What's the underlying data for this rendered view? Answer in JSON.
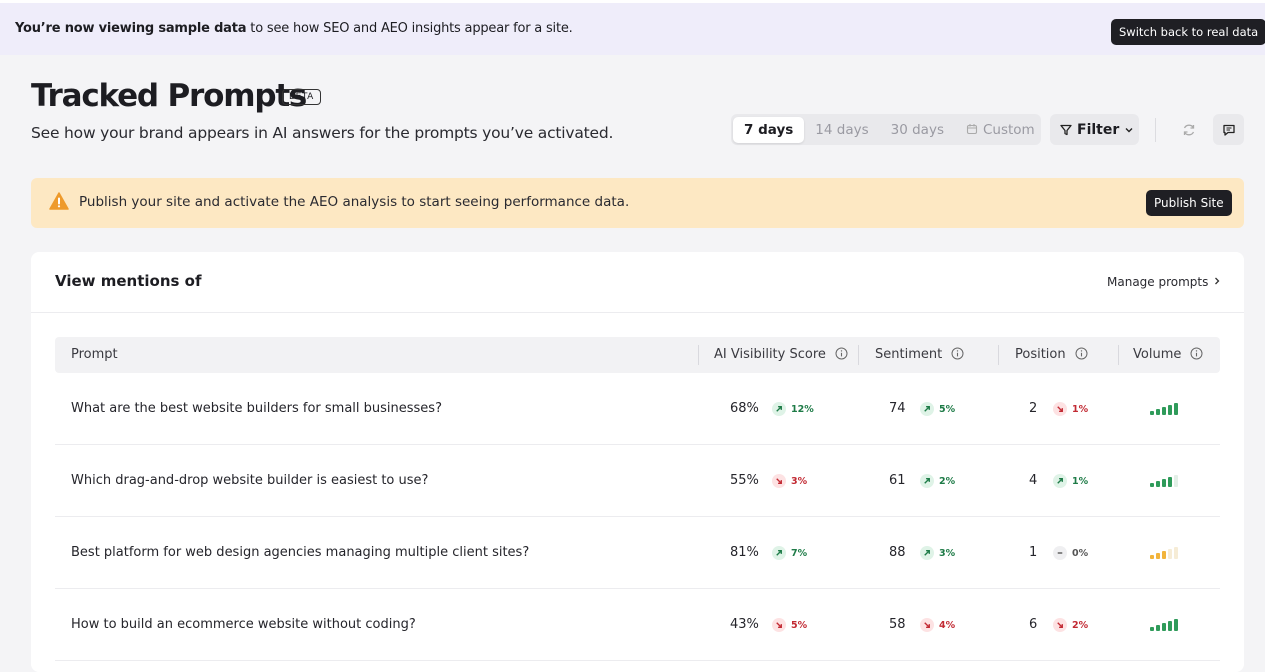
{
  "banner": {
    "lead": "You’re now viewing sample data",
    "text": "to see how SEO and AEO insights appear for a site.",
    "button": "Switch back to real data"
  },
  "header": {
    "title": "Tracked Prompts",
    "badge": "BETA",
    "subtitle": "See how your brand appears in AI answers for the prompts you’ve activated."
  },
  "toolbar": {
    "ranges": [
      "7 days",
      "14 days",
      "30 days",
      "Custom"
    ],
    "active_range": 0,
    "filter": "Filter"
  },
  "alert": {
    "text": "Publish your site and activate the AEO analysis to start seeing performance data.",
    "button": "Publish Site"
  },
  "panel": {
    "title": "View mentions of",
    "link": "Manage prompts"
  },
  "table": {
    "columns": [
      "Prompt",
      "AI Visibility Score",
      "Sentiment",
      "Position",
      "Volume"
    ],
    "rows": [
      {
        "prompt": "What are the best website builders for small businesses?",
        "visibility": "68%",
        "visibility_change": {
          "text": "12%",
          "trend": "up"
        },
        "sentiment": "74",
        "sentiment_change": {
          "text": "5%",
          "trend": "up"
        },
        "position": "2",
        "position_change": {
          "text": "1%",
          "trend": "down"
        },
        "volume": 5
      },
      {
        "prompt": "Which drag-and-drop website builder is easiest to use?",
        "visibility": "55%",
        "visibility_change": {
          "text": "3%",
          "trend": "down"
        },
        "sentiment": "61",
        "sentiment_change": {
          "text": "2%",
          "trend": "up"
        },
        "position": "4",
        "position_change": {
          "text": "1%",
          "trend": "up"
        },
        "volume": 4
      },
      {
        "prompt": "Best platform for web design agencies managing multiple client sites?",
        "visibility": "81%",
        "visibility_change": {
          "text": "7%",
          "trend": "up"
        },
        "sentiment": "88",
        "sentiment_change": {
          "text": "3%",
          "trend": "up"
        },
        "position": "1",
        "position_change": {
          "text": "0%",
          "trend": "flat"
        },
        "volume": 3
      },
      {
        "prompt": "How to build an ecommerce website without coding?",
        "visibility": "43%",
        "visibility_change": {
          "text": "5%",
          "trend": "down"
        },
        "sentiment": "58",
        "sentiment_change": {
          "text": "4%",
          "trend": "down"
        },
        "position": "6",
        "position_change": {
          "text": "2%",
          "trend": "down"
        },
        "volume": 5
      }
    ]
  }
}
